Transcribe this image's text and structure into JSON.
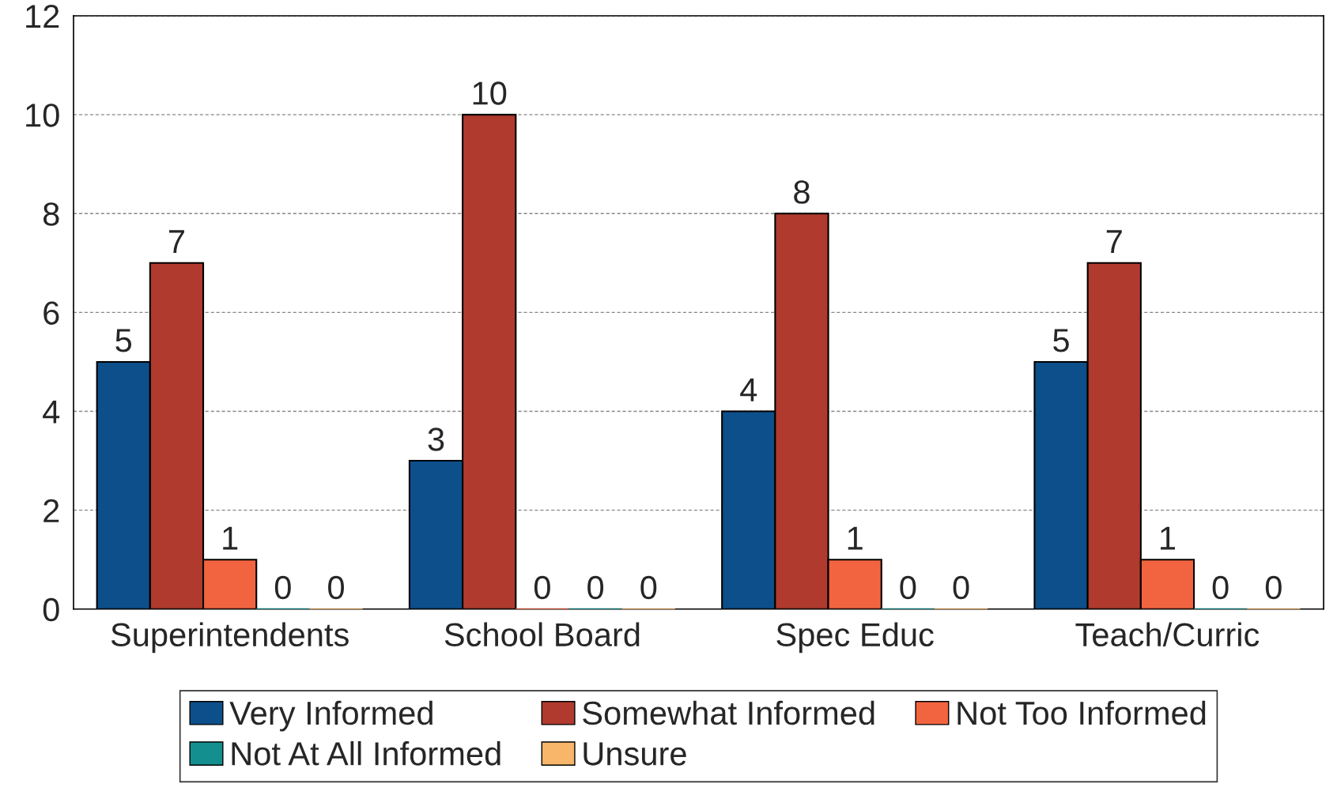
{
  "chart_data": {
    "type": "bar",
    "categories": [
      "Superintendents",
      "School Board",
      "Spec Educ",
      "Teach/Curric"
    ],
    "series": [
      {
        "name": "Very Informed",
        "color": "#0d4f8b",
        "values": [
          5,
          3,
          4,
          5
        ]
      },
      {
        "name": "Somewhat Informed",
        "color": "#b03a2e",
        "values": [
          7,
          10,
          8,
          7
        ]
      },
      {
        "name": "Not Too Informed",
        "color": "#f26440",
        "values": [
          1,
          0,
          1,
          1
        ]
      },
      {
        "name": "Not At All Informed",
        "color": "#138f8f",
        "values": [
          0,
          0,
          0,
          0
        ]
      },
      {
        "name": "Unsure",
        "color": "#f8b66a",
        "values": [
          0,
          0,
          0,
          0
        ]
      }
    ],
    "ylim": [
      0,
      12
    ],
    "yticks": [
      0,
      2,
      4,
      6,
      8,
      10,
      12
    ],
    "grid": "y",
    "legend": "bottom",
    "data_labels": true
  }
}
